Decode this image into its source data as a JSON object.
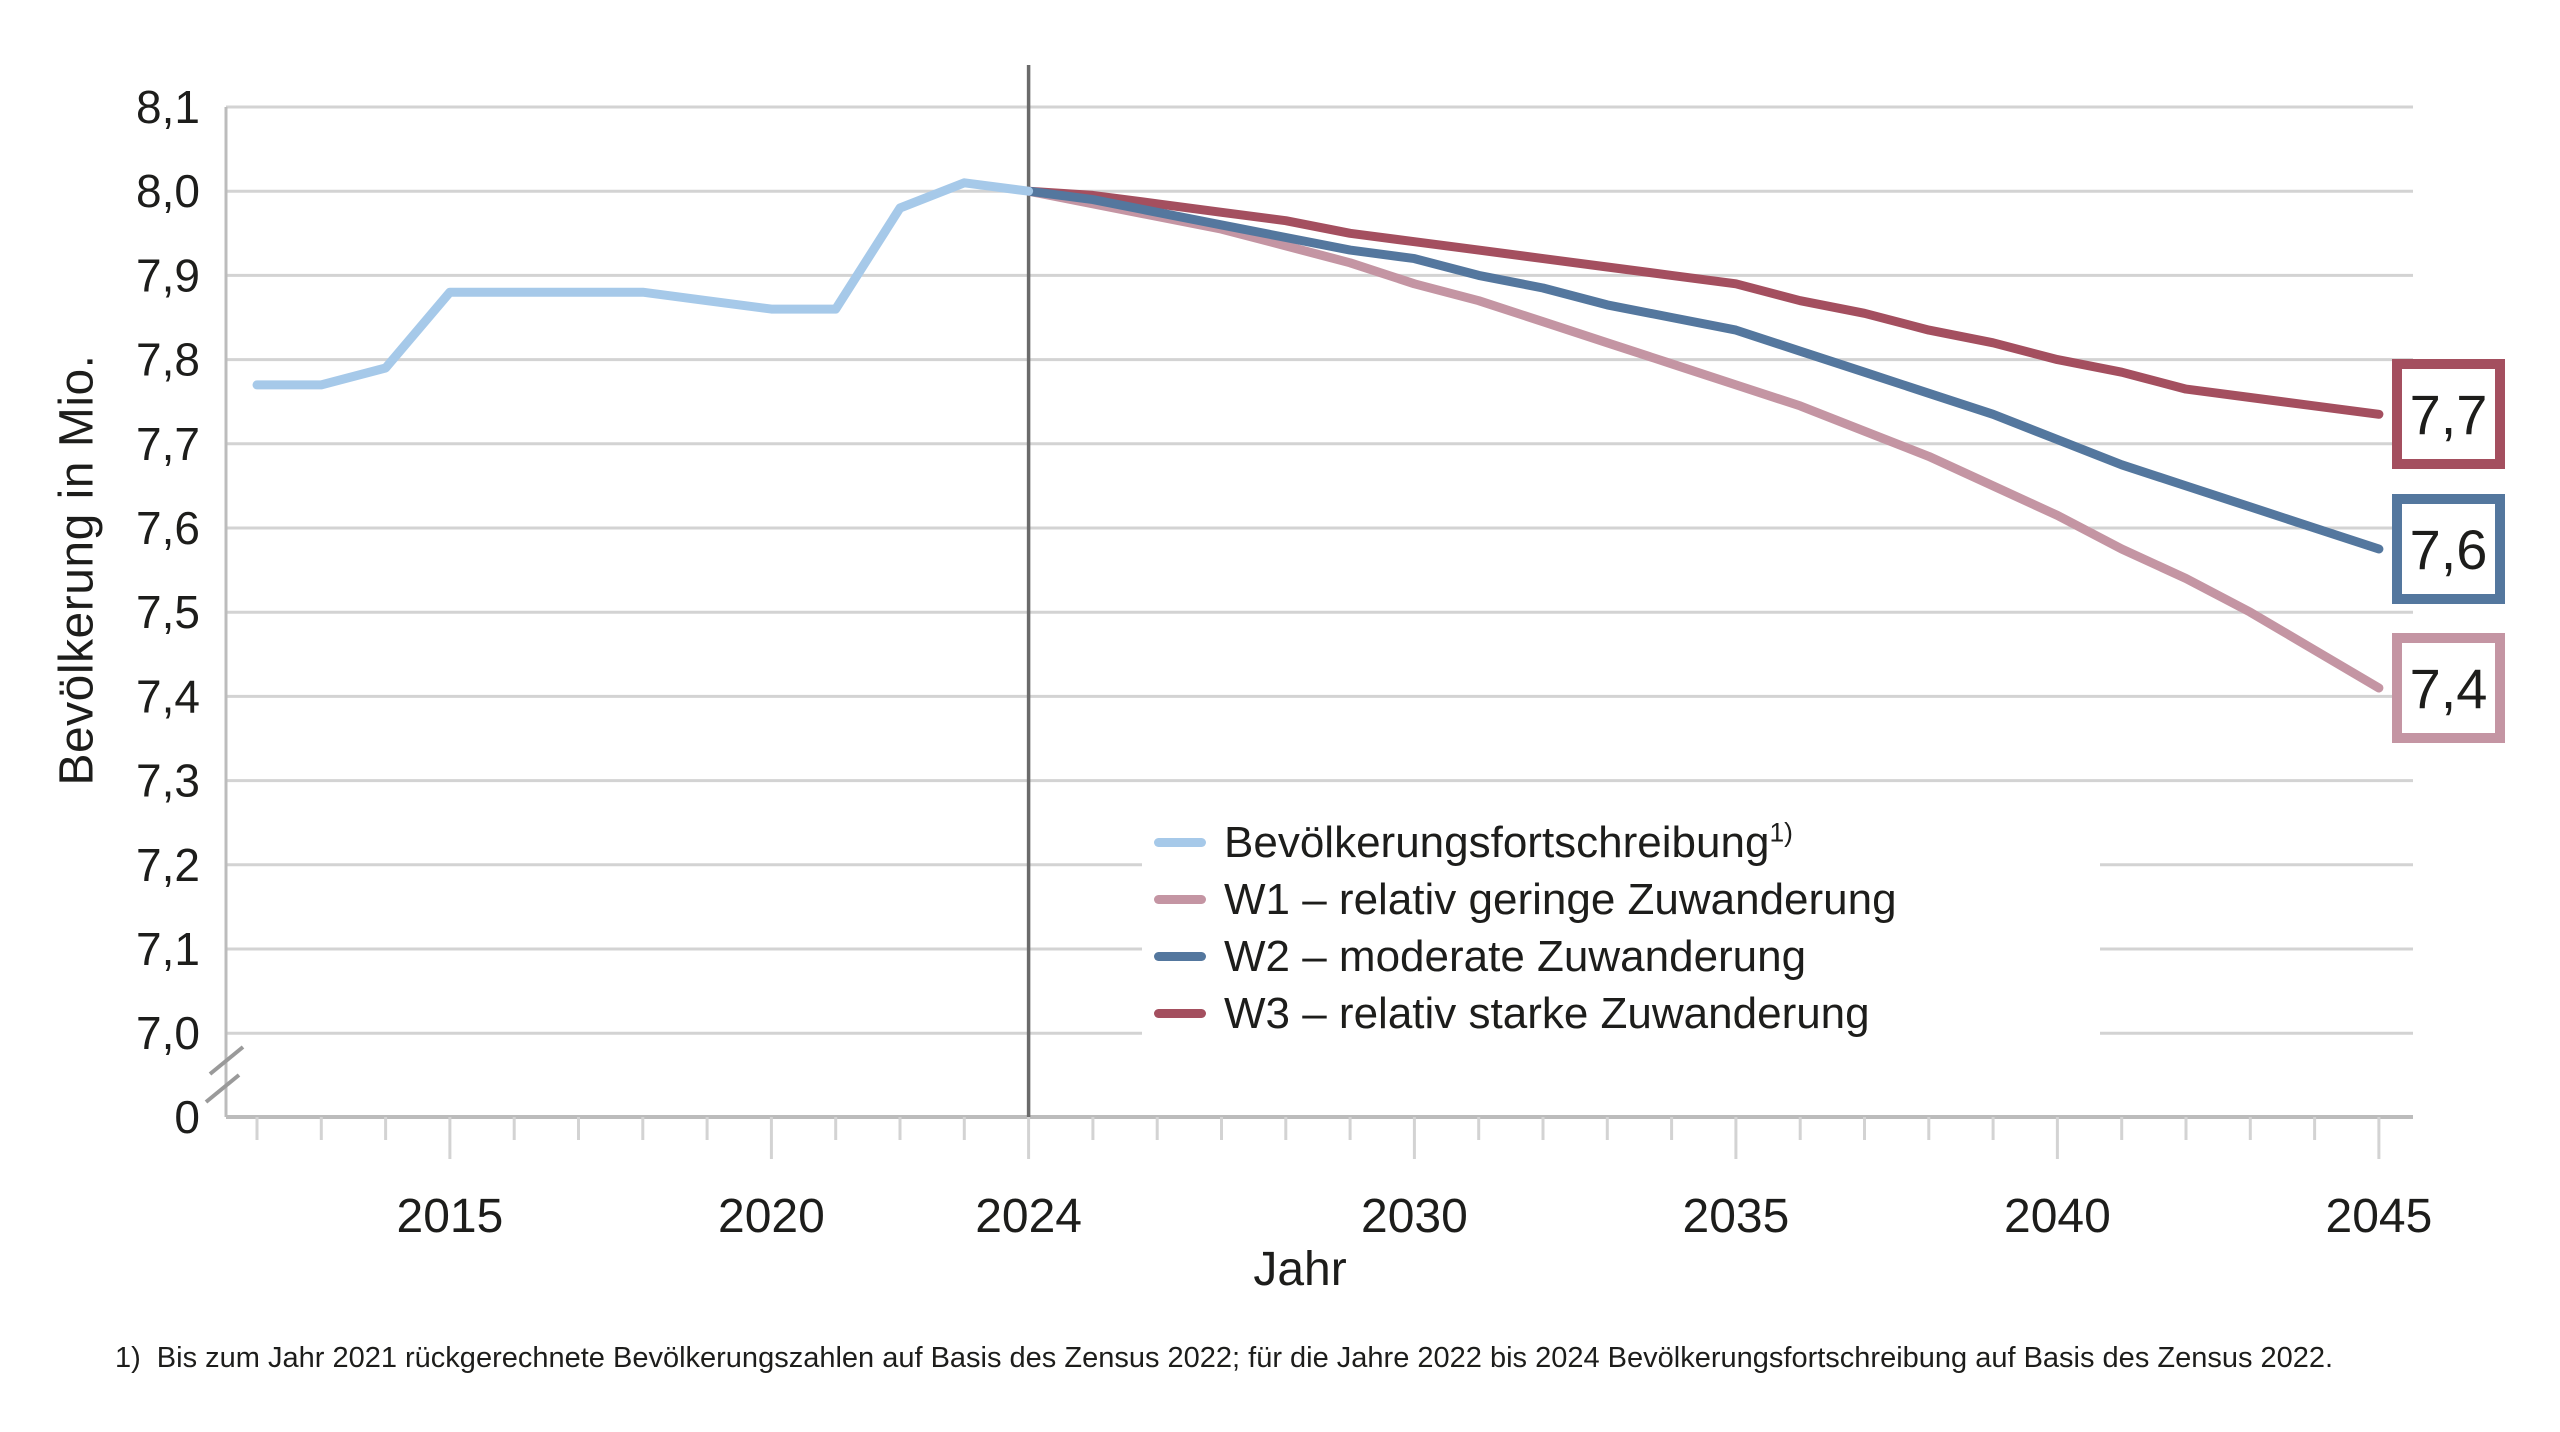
{
  "chart_data": {
    "type": "line",
    "xlabel": "Jahr",
    "ylabel": "Bevölkerung in Mio.",
    "x_range": [
      2012,
      2045
    ],
    "x_ticks_labeled": [
      2015,
      2020,
      2024,
      2030,
      2035,
      2040,
      2045
    ],
    "y_ticks": [
      {
        "label": "8,1",
        "value": 8.1
      },
      {
        "label": "8,0",
        "value": 8.0
      },
      {
        "label": "7,9",
        "value": 7.9
      },
      {
        "label": "7,8",
        "value": 7.8
      },
      {
        "label": "7,7",
        "value": 7.7
      },
      {
        "label": "7,6",
        "value": 7.6
      },
      {
        "label": "7,5",
        "value": 7.5
      },
      {
        "label": "7,4",
        "value": 7.4
      },
      {
        "label": "7,3",
        "value": 7.3
      },
      {
        "label": "7,2",
        "value": 7.2
      },
      {
        "label": "7,1",
        "value": 7.1
      },
      {
        "label": "7,0",
        "value": 7.0
      }
    ],
    "y_zero_label": "0",
    "axis_break": true,
    "grid": true,
    "reference_line_year": 2024,
    "series": [
      {
        "id": "w1",
        "name": "W1 – relativ geringe Zuwanderung",
        "color": "#c495a3",
        "start_year": 2024,
        "values": [
          8.0,
          7.985,
          7.97,
          7.955,
          7.935,
          7.915,
          7.89,
          7.87,
          7.845,
          7.82,
          7.795,
          7.77,
          7.745,
          7.715,
          7.685,
          7.65,
          7.615,
          7.575,
          7.54,
          7.5,
          7.455,
          7.41
        ]
      },
      {
        "id": "w3",
        "name": "W3 – relativ starke Zuwanderung",
        "color": "#a44f5f",
        "start_year": 2024,
        "values": [
          8.0,
          7.995,
          7.985,
          7.975,
          7.965,
          7.95,
          7.94,
          7.93,
          7.92,
          7.91,
          7.9,
          7.89,
          7.87,
          7.855,
          7.835,
          7.82,
          7.8,
          7.785,
          7.765,
          7.755,
          7.745,
          7.735
        ]
      },
      {
        "id": "w2",
        "name": "W2 – moderate Zuwanderung",
        "color": "#54779e",
        "start_year": 2024,
        "values": [
          8.0,
          7.99,
          7.975,
          7.96,
          7.945,
          7.93,
          7.92,
          7.9,
          7.885,
          7.865,
          7.85,
          7.835,
          7.81,
          7.785,
          7.76,
          7.735,
          7.705,
          7.675,
          7.65,
          7.625,
          7.6,
          7.575
        ]
      },
      {
        "id": "fortschreibung",
        "name": "Bevölkerungsfortschreibung",
        "color": "#a6c9e9",
        "start_year": 2012,
        "values": [
          7.77,
          7.77,
          7.79,
          7.88,
          7.88,
          7.88,
          7.88,
          7.87,
          7.86,
          7.86,
          7.98,
          8.01,
          8.0
        ]
      }
    ],
    "end_labels": [
      {
        "text": "7,7",
        "series": "w3",
        "value": 7.735
      },
      {
        "text": "7,6",
        "series": "w2",
        "value": 7.575
      },
      {
        "text": "7,4",
        "series": "w1",
        "value": 7.41
      }
    ],
    "legend_position": "inside lower right"
  },
  "legend": {
    "items": [
      {
        "label": "Bevölkerungsfortschreibung",
        "marker": "1)",
        "series": "fortschreibung"
      },
      {
        "label": "W1 – relativ geringe Zuwanderung",
        "series": "w1"
      },
      {
        "label": "W2 – moderate Zuwanderung",
        "series": "w2"
      },
      {
        "label": "W3 – relativ starke Zuwanderung",
        "series": "w3"
      }
    ]
  },
  "axis_titles": {
    "x": "Jahr",
    "y": "Bevölkerung in Mio."
  },
  "footnote": {
    "marker": "1)",
    "text": "Bis zum Jahr 2021 rückgerechnete Bevölkerungszahlen auf Basis des Zensus 2022; für die Jahre 2022 bis 2024 Bevölkerungsfortschreibung auf Basis des Zensus 2022."
  },
  "colors": {
    "gridline": "#d3d3d3",
    "axis": "#bcbcbc",
    "reference_line": "#6b6b6b",
    "axis_break": "#9a9a9a",
    "text": "#1d1d1b"
  }
}
